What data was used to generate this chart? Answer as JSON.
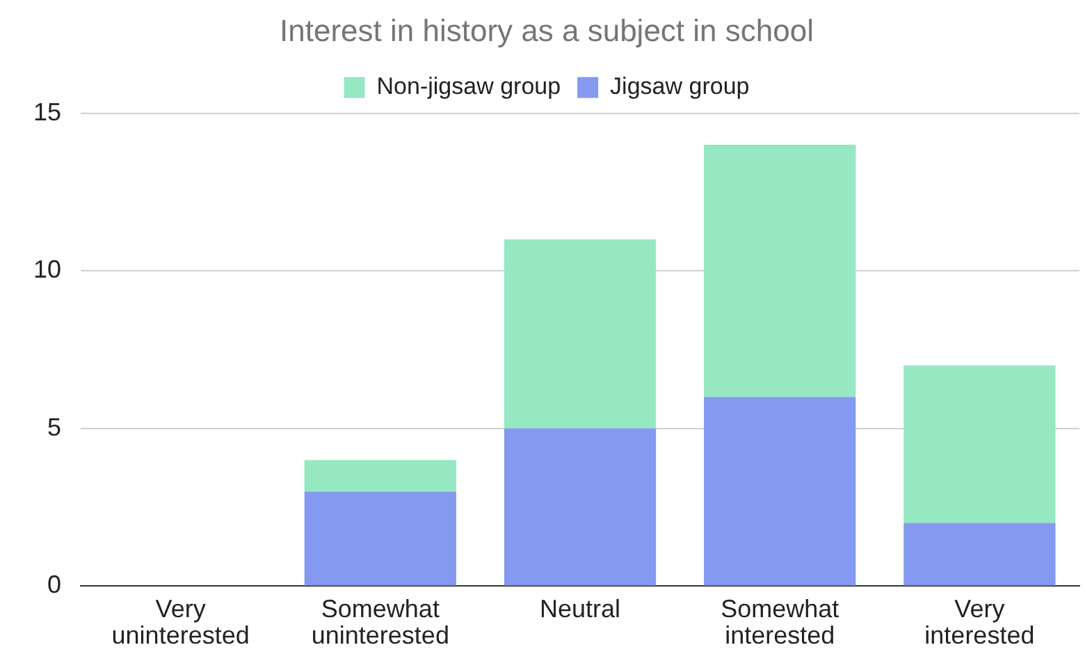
{
  "chart_data": {
    "type": "bar",
    "title": "Interest in history as a subject in school",
    "categories": [
      "Very uninterested",
      "Somewhat uninterested",
      "Neutral",
      "Somewhat interested",
      "Very interested"
    ],
    "series": [
      {
        "name": "Jigsaw group",
        "color": "#8499ef",
        "values": [
          0,
          3,
          5,
          6,
          2
        ]
      },
      {
        "name": "Non-jigsaw group",
        "color": "#95e8c2",
        "values": [
          0,
          1,
          6,
          8,
          5
        ]
      }
    ],
    "stacked": true,
    "ylim": [
      0,
      15
    ],
    "yticks": [
      0,
      5,
      10,
      15
    ],
    "grid": "y",
    "legend": "top"
  }
}
